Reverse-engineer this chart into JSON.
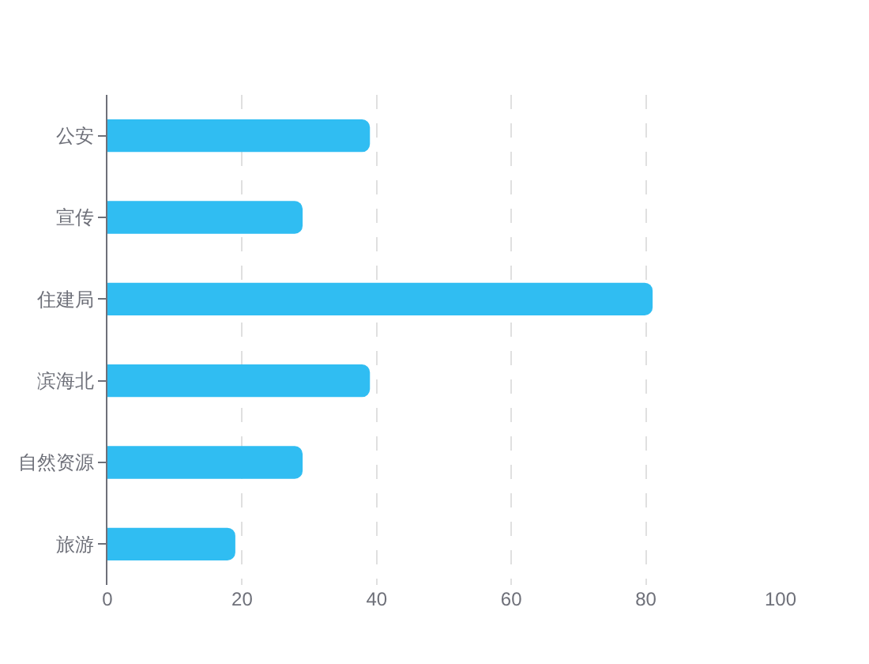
{
  "chart_data": {
    "type": "bar",
    "orientation": "horizontal",
    "categories": [
      "公安",
      "宣传",
      "住建局",
      "滨海北",
      "自然资源",
      "旅游"
    ],
    "values": [
      39,
      29,
      81,
      39,
      29,
      19
    ],
    "color": "#30bdf2",
    "xlim": [
      0,
      100
    ],
    "xticks": [
      0,
      20,
      40,
      60,
      80,
      100
    ],
    "grid": "x",
    "legend": false
  }
}
